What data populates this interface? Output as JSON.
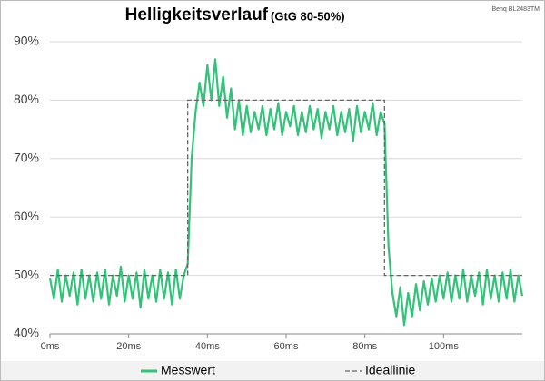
{
  "chart_data": {
    "type": "line",
    "title": "Helligkeitsverlauf",
    "subtitle": "(GtG 80-50%)",
    "annotation": "Benq BL2483TM",
    "x": [
      0,
      1,
      2,
      3,
      4,
      5,
      6,
      7,
      8,
      9,
      10,
      11,
      12,
      13,
      14,
      15,
      16,
      17,
      18,
      19,
      20,
      21,
      22,
      23,
      24,
      25,
      26,
      27,
      28,
      29,
      30,
      31,
      32,
      33,
      34,
      35,
      36,
      37,
      38,
      39,
      40,
      41,
      42,
      43,
      44,
      45,
      46,
      47,
      48,
      49,
      50,
      51,
      52,
      53,
      54,
      55,
      56,
      57,
      58,
      59,
      60,
      61,
      62,
      63,
      64,
      65,
      66,
      67,
      68,
      69,
      70,
      71,
      72,
      73,
      74,
      75,
      76,
      77,
      78,
      79,
      80,
      81,
      82,
      83,
      84,
      85,
      86,
      87,
      88,
      89,
      90,
      91,
      92,
      93,
      94,
      95,
      96,
      97,
      98,
      99,
      100,
      101,
      102,
      103,
      104,
      105,
      106,
      107,
      108,
      109,
      110,
      111,
      112,
      113,
      114,
      115,
      116,
      117,
      118,
      119,
      120
    ],
    "series": [
      {
        "name": "Messwert",
        "color": "#33c27a",
        "style": "solid",
        "values": [
          49.5,
          46,
          51,
          45.5,
          50,
          46.5,
          50.5,
          45,
          51,
          46,
          50,
          45.5,
          50.5,
          46,
          51,
          45,
          50,
          46.5,
          51.5,
          45.5,
          50,
          46,
          50.5,
          44.5,
          51,
          46,
          50,
          45.5,
          51,
          46,
          50.5,
          45,
          51,
          46,
          50,
          52,
          70,
          78,
          83,
          79,
          86,
          80,
          87,
          79,
          84,
          77,
          82,
          75,
          80,
          74,
          79,
          74.5,
          78,
          75,
          79,
          74,
          78.5,
          75,
          79.5,
          74,
          78,
          75.5,
          79,
          74,
          78,
          74.5,
          79,
          75,
          78.5,
          73.5,
          78,
          75,
          79,
          74,
          78,
          74.5,
          78.5,
          73,
          79,
          74.5,
          78,
          75,
          79.5,
          74,
          78,
          76,
          55,
          47,
          43,
          48,
          41.5,
          47,
          43,
          48.5,
          44,
          49,
          45,
          49.5,
          45.5,
          50,
          46,
          50.5,
          45.5,
          50,
          46,
          51,
          45.5,
          50,
          46.5,
          50.5,
          45,
          51,
          46,
          50,
          45.5,
          50.5,
          46,
          51,
          45.5,
          50,
          46.5
        ]
      },
      {
        "name": "Ideallinie",
        "color": "#666666",
        "style": "dashed",
        "x": [
          0,
          35,
          35,
          85,
          85,
          120
        ],
        "values": [
          50,
          50,
          80,
          80,
          50,
          50
        ]
      }
    ],
    "xlim": [
      0,
      120
    ],
    "xticks": [
      {
        "value": 0,
        "label": "0ms"
      },
      {
        "value": 20,
        "label": "20ms"
      },
      {
        "value": 40,
        "label": "40ms"
      },
      {
        "value": 60,
        "label": "60ms"
      },
      {
        "value": 80,
        "label": "80ms"
      },
      {
        "value": 100,
        "label": "100ms"
      }
    ],
    "ylim": [
      40,
      90
    ],
    "yticks": [
      {
        "value": 40,
        "label": "40%"
      },
      {
        "value": 50,
        "label": "50%"
      },
      {
        "value": 60,
        "label": "60%"
      },
      {
        "value": 70,
        "label": "70%"
      },
      {
        "value": 80,
        "label": "80%"
      },
      {
        "value": 90,
        "label": "90%"
      }
    ],
    "grid": true
  }
}
